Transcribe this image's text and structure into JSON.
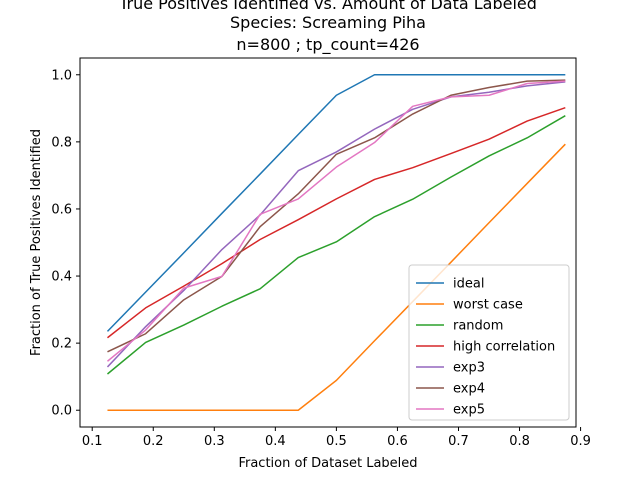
{
  "chart_data": {
    "type": "line",
    "title_lines": [
      "True Positives Identified vs. Amount of Data Labeled",
      "Species: Screaming Piha",
      "n=800 ; tp_count=426"
    ],
    "xlabel": "Fraction of Dataset Labeled",
    "ylabel": "Fraction of True Positives Identified",
    "xlim": [
      0.08,
      0.8925
    ],
    "ylim": [
      -0.05,
      1.05
    ],
    "xticks": [
      0.1,
      0.2,
      0.3,
      0.4,
      0.5,
      0.6,
      0.7,
      0.8,
      0.9
    ],
    "xtick_labels": [
      "0.1",
      "0.2",
      "0.3",
      "0.4",
      "0.5",
      "0.6",
      "0.7",
      "0.8",
      "0.9"
    ],
    "yticks": [
      0.0,
      0.2,
      0.4,
      0.6,
      0.8,
      1.0
    ],
    "ytick_labels": [
      "0.0",
      "0.2",
      "0.4",
      "0.6",
      "0.8",
      "1.0"
    ],
    "grid": false,
    "legend_position": "lower-right",
    "x": [
      0.125,
      0.1875,
      0.25,
      0.3125,
      0.375,
      0.4375,
      0.5,
      0.5625,
      0.625,
      0.6875,
      0.75,
      0.8125,
      0.875
    ],
    "series": [
      {
        "name": "ideal",
        "color": "#1f77b4",
        "values": [
          0.235,
          0.352,
          0.469,
          0.587,
          0.704,
          0.822,
          0.939,
          1.0,
          1.0,
          1.0,
          1.0,
          1.0,
          1.0
        ]
      },
      {
        "name": "worst case",
        "color": "#ff7f0e",
        "values": [
          0.0,
          0.0,
          0.0,
          0.0,
          0.0,
          0.0,
          0.089,
          0.207,
          0.324,
          0.441,
          0.559,
          0.676,
          0.793
        ]
      },
      {
        "name": "random",
        "color": "#2ca02c",
        "values": [
          0.108,
          0.202,
          0.254,
          0.31,
          0.362,
          0.455,
          0.502,
          0.577,
          0.629,
          0.695,
          0.758,
          0.812,
          0.878
        ]
      },
      {
        "name": "high correlation",
        "color": "#d62728",
        "values": [
          0.216,
          0.305,
          0.37,
          0.437,
          0.509,
          0.568,
          0.63,
          0.688,
          0.723,
          0.765,
          0.808,
          0.862,
          0.902
        ]
      },
      {
        "name": "exp3",
        "color": "#9467bd",
        "values": [
          0.129,
          0.249,
          0.357,
          0.479,
          0.582,
          0.714,
          0.77,
          0.838,
          0.897,
          0.934,
          0.948,
          0.967,
          0.979
        ]
      },
      {
        "name": "exp4",
        "color": "#8c564b",
        "values": [
          0.174,
          0.228,
          0.329,
          0.399,
          0.547,
          0.645,
          0.763,
          0.812,
          0.883,
          0.939,
          0.962,
          0.981,
          0.984
        ]
      },
      {
        "name": "exp5",
        "color": "#e377c2",
        "values": [
          0.146,
          0.239,
          0.364,
          0.399,
          0.584,
          0.63,
          0.725,
          0.798,
          0.906,
          0.934,
          0.939,
          0.974,
          0.981
        ]
      }
    ]
  }
}
